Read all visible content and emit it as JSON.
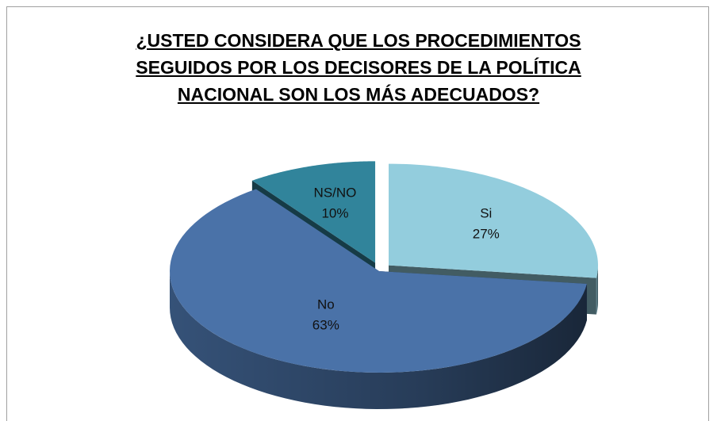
{
  "chart_data": {
    "type": "pie",
    "title": "¿USTED CONSIDERA QUE LOS PROCEDIMIENTOS SEGUIDOS POR LOS DECISORES DE LA POLÍTICA NACIONAL SON LOS MÁS ADECUADOS?",
    "categories": [
      "Si",
      "No",
      "NS/NO"
    ],
    "values": [
      27,
      63,
      10
    ],
    "value_labels": [
      "27%",
      "63%",
      "10%"
    ],
    "colors": [
      "#93cddd",
      "#4a72a8",
      "#31849b"
    ]
  }
}
